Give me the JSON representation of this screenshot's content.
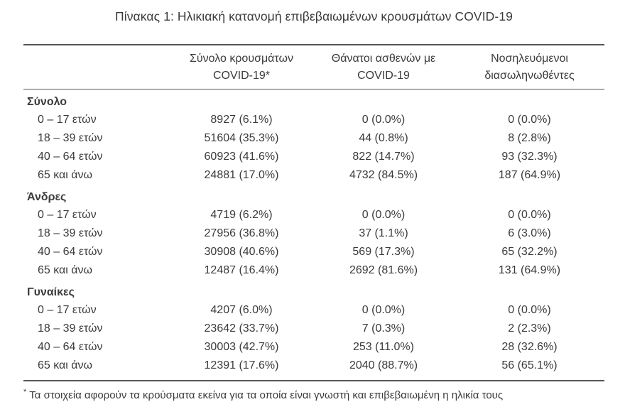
{
  "page": {
    "title": "Πίνακας 1: Ηλικιακή κατανομή επιβεβαιωμένων κρουσμάτων COVID-19",
    "footnote_marker": "*",
    "footnote": "Τα στοιχεία αφορούν τα κρούσματα εκείνα για τα οποία είναι γνωστή και επιβεβαιωμένη η ηλικία τους"
  },
  "table": {
    "columns": [
      {
        "line1": "Σύνολο κρουσμάτων",
        "line2": "COVID-19*"
      },
      {
        "line1": "Θάνατοι ασθενών με",
        "line2": "COVID-19"
      },
      {
        "line1": "Νοσηλευόμενοι",
        "line2": "διασωληνωθέντες"
      }
    ],
    "sections": [
      {
        "title": "Σύνολο",
        "rows": [
          {
            "label": "0 – 17 ετών",
            "cases": "8927 (6.1%)",
            "deaths": "0 (0.0%)",
            "intubated": "0 (0.0%)"
          },
          {
            "label": "18 – 39 ετών",
            "cases": "51604 (35.3%)",
            "deaths": "44 (0.8%)",
            "intubated": "8 (2.8%)"
          },
          {
            "label": "40 – 64 ετών",
            "cases": "60923 (41.6%)",
            "deaths": "822 (14.7%)",
            "intubated": "93 (32.3%)"
          },
          {
            "label": "65 και άνω",
            "cases": "24881 (17.0%)",
            "deaths": "4732 (84.5%)",
            "intubated": "187 (64.9%)"
          }
        ]
      },
      {
        "title": "Άνδρες",
        "rows": [
          {
            "label": "0 – 17 ετών",
            "cases": "4719 (6.2%)",
            "deaths": "0 (0.0%)",
            "intubated": "0 (0.0%)"
          },
          {
            "label": "18 – 39 ετών",
            "cases": "27956 (36.8%)",
            "deaths": "37 (1.1%)",
            "intubated": "6 (3.0%)"
          },
          {
            "label": "40 – 64 ετών",
            "cases": "30908 (40.6%)",
            "deaths": "569 (17.3%)",
            "intubated": "65 (32.2%)"
          },
          {
            "label": "65 και άνω",
            "cases": "12487 (16.4%)",
            "deaths": "2692 (81.6%)",
            "intubated": "131 (64.9%)"
          }
        ]
      },
      {
        "title": "Γυναίκες",
        "rows": [
          {
            "label": "0 – 17 ετών",
            "cases": "4207 (6.0%)",
            "deaths": "0 (0.0%)",
            "intubated": "0 (0.0%)"
          },
          {
            "label": "18 – 39 ετών",
            "cases": "23642 (33.7%)",
            "deaths": "7 (0.3%)",
            "intubated": "2 (2.3%)"
          },
          {
            "label": "40 – 64 ετών",
            "cases": "30003 (42.7%)",
            "deaths": "253 (11.0%)",
            "intubated": "28 (32.6%)"
          },
          {
            "label": "65 και άνω",
            "cases": "12391 (17.6%)",
            "deaths": "2040 (88.7%)",
            "intubated": "56 (65.1%)"
          }
        ]
      }
    ]
  }
}
